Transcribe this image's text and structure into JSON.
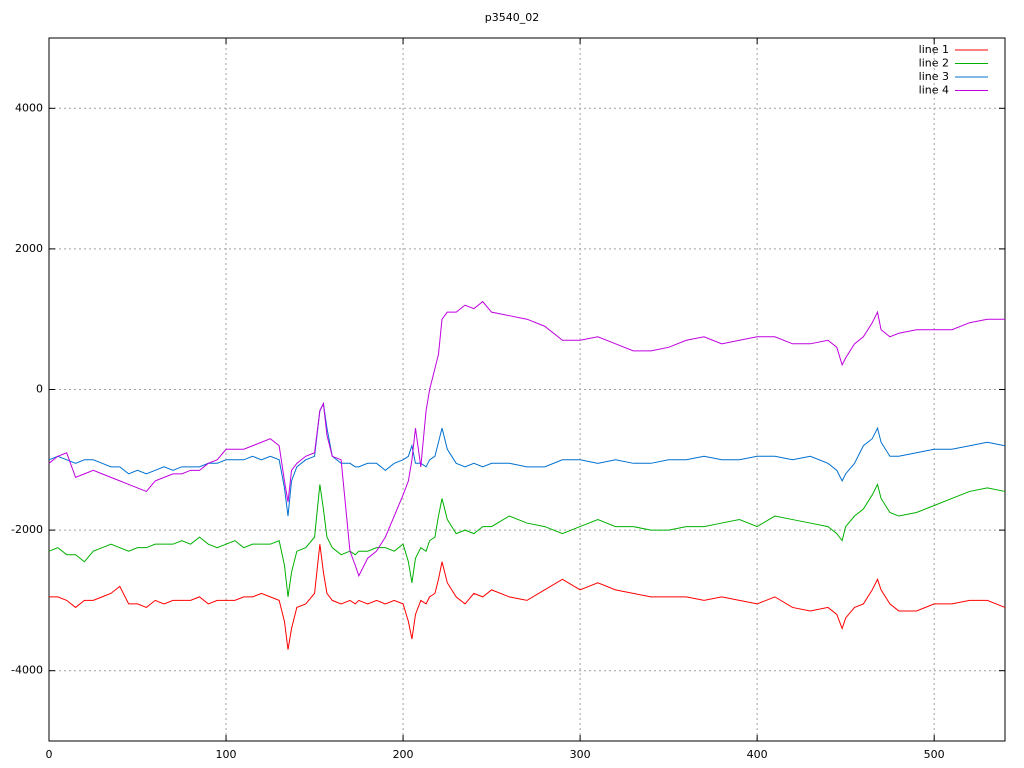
{
  "chart_data": {
    "type": "line",
    "title": "p3540_02",
    "x": [
      0,
      5,
      10,
      15,
      20,
      25,
      30,
      35,
      40,
      45,
      50,
      55,
      60,
      65,
      70,
      75,
      80,
      85,
      90,
      95,
      100,
      105,
      110,
      115,
      120,
      125,
      130,
      133,
      135,
      137,
      140,
      145,
      150,
      153,
      155,
      157,
      160,
      165,
      170,
      173,
      175,
      180,
      185,
      190,
      195,
      200,
      203,
      205,
      207,
      210,
      213,
      215,
      218,
      220,
      222,
      225,
      230,
      235,
      240,
      245,
      250,
      260,
      270,
      280,
      290,
      300,
      310,
      320,
      330,
      340,
      350,
      360,
      370,
      380,
      390,
      400,
      410,
      420,
      430,
      440,
      445,
      448,
      450,
      455,
      460,
      465,
      468,
      470,
      475,
      480,
      490,
      500,
      510,
      520,
      530,
      540
    ],
    "series": [
      {
        "name": "line 1",
        "color": "#ff0000",
        "values": [
          -2950,
          -2950,
          -3000,
          -3100,
          -3000,
          -3000,
          -2950,
          -2900,
          -2800,
          -3050,
          -3050,
          -3100,
          -3000,
          -3050,
          -3000,
          -3000,
          -3000,
          -2950,
          -3050,
          -3000,
          -3000,
          -3000,
          -2950,
          -2950,
          -2900,
          -2950,
          -3000,
          -3300,
          -3700,
          -3400,
          -3100,
          -3050,
          -2900,
          -2200,
          -2600,
          -2900,
          -3000,
          -3050,
          -3000,
          -3050,
          -3000,
          -3050,
          -3000,
          -3050,
          -3000,
          -3050,
          -3300,
          -3550,
          -3200,
          -3000,
          -3050,
          -2950,
          -2900,
          -2700,
          -2450,
          -2750,
          -2950,
          -3050,
          -2900,
          -2950,
          -2850,
          -2950,
          -3000,
          -2850,
          -2700,
          -2850,
          -2750,
          -2850,
          -2900,
          -2950,
          -2950,
          -2950,
          -3000,
          -2950,
          -3000,
          -3050,
          -2950,
          -3100,
          -3150,
          -3100,
          -3200,
          -3400,
          -3250,
          -3100,
          -3050,
          -2850,
          -2700,
          -2850,
          -3050,
          -3150,
          -3150,
          -3050,
          -3050,
          -3000,
          -3000,
          -3100
        ]
      },
      {
        "name": "line 2",
        "color": "#00b000",
        "values": [
          -2300,
          -2250,
          -2350,
          -2350,
          -2450,
          -2300,
          -2250,
          -2200,
          -2250,
          -2300,
          -2250,
          -2250,
          -2200,
          -2200,
          -2200,
          -2150,
          -2200,
          -2100,
          -2200,
          -2250,
          -2200,
          -2150,
          -2250,
          -2200,
          -2200,
          -2200,
          -2150,
          -2500,
          -2950,
          -2600,
          -2300,
          -2250,
          -2100,
          -1350,
          -1700,
          -2100,
          -2250,
          -2350,
          -2300,
          -2350,
          -2300,
          -2300,
          -2250,
          -2250,
          -2300,
          -2200,
          -2450,
          -2750,
          -2400,
          -2250,
          -2300,
          -2150,
          -2100,
          -1800,
          -1550,
          -1850,
          -2050,
          -2000,
          -2050,
          -1950,
          -1950,
          -1800,
          -1900,
          -1950,
          -2050,
          -1950,
          -1850,
          -1950,
          -1950,
          -2000,
          -2000,
          -1950,
          -1950,
          -1900,
          -1850,
          -1950,
          -1800,
          -1850,
          -1900,
          -1950,
          -2050,
          -2150,
          -1950,
          -1800,
          -1700,
          -1500,
          -1350,
          -1550,
          -1750,
          -1800,
          -1750,
          -1650,
          -1550,
          -1450,
          -1400,
          -1450
        ]
      },
      {
        "name": "line 3",
        "color": "#0070d0",
        "values": [
          -1000,
          -950,
          -1000,
          -1050,
          -1000,
          -1000,
          -1050,
          -1100,
          -1100,
          -1200,
          -1150,
          -1200,
          -1150,
          -1100,
          -1150,
          -1100,
          -1100,
          -1100,
          -1050,
          -1050,
          -1000,
          -1000,
          -1000,
          -950,
          -1000,
          -950,
          -1000,
          -1400,
          -1800,
          -1300,
          -1100,
          -1000,
          -950,
          -300,
          -200,
          -550,
          -950,
          -1050,
          -1050,
          -1100,
          -1100,
          -1050,
          -1050,
          -1150,
          -1050,
          -1000,
          -950,
          -800,
          -1050,
          -1050,
          -1100,
          -1000,
          -950,
          -750,
          -550,
          -850,
          -1050,
          -1100,
          -1050,
          -1100,
          -1050,
          -1050,
          -1100,
          -1100,
          -1000,
          -1000,
          -1050,
          -1000,
          -1050,
          -1050,
          -1000,
          -1000,
          -950,
          -1000,
          -1000,
          -950,
          -950,
          -1000,
          -950,
          -1050,
          -1150,
          -1300,
          -1200,
          -1050,
          -800,
          -700,
          -550,
          -750,
          -950,
          -950,
          -900,
          -850,
          -850,
          -800,
          -750,
          -800
        ]
      },
      {
        "name": "line 4",
        "color": "#c000e0",
        "values": [
          -1050,
          -950,
          -900,
          -1250,
          -1200,
          -1150,
          -1200,
          -1250,
          -1300,
          -1350,
          -1400,
          -1450,
          -1300,
          -1250,
          -1200,
          -1200,
          -1150,
          -1150,
          -1050,
          -1000,
          -850,
          -850,
          -850,
          -800,
          -750,
          -700,
          -800,
          -1300,
          -1600,
          -1150,
          -1050,
          -950,
          -900,
          -300,
          -200,
          -650,
          -950,
          -1000,
          -2300,
          -2500,
          -2650,
          -2400,
          -2300,
          -2100,
          -1800,
          -1500,
          -1300,
          -1000,
          -550,
          -1100,
          -300,
          0,
          300,
          500,
          1000,
          1100,
          1100,
          1200,
          1150,
          1250,
          1100,
          1050,
          1000,
          900,
          700,
          700,
          750,
          650,
          550,
          550,
          600,
          700,
          750,
          650,
          700,
          750,
          750,
          650,
          650,
          700,
          600,
          350,
          450,
          650,
          750,
          950,
          1100,
          850,
          750,
          800,
          850,
          850,
          850,
          950,
          1000,
          1000
        ]
      }
    ],
    "xlim": [
      0,
      540
    ],
    "xticks": [
      0,
      100,
      200,
      300,
      400,
      500
    ],
    "ylim": [
      -5000,
      5000
    ],
    "yticks": [
      -4000,
      -2000,
      0,
      2000,
      4000
    ],
    "grid": true,
    "legend": "upper right"
  }
}
